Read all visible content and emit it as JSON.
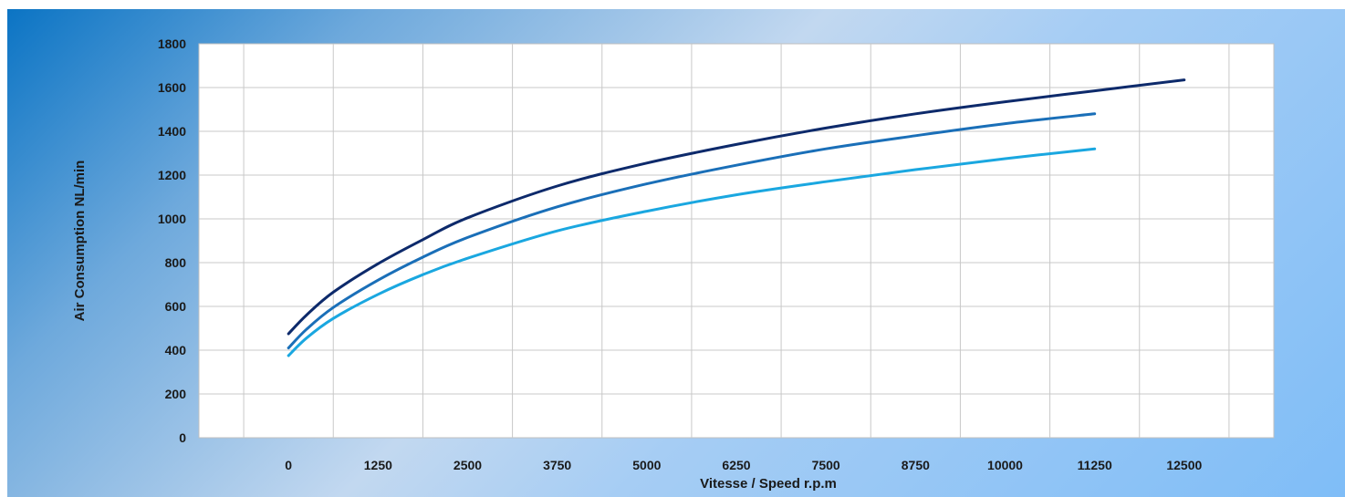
{
  "chart_data": {
    "type": "line",
    "title": "",
    "xlabel": "Vitesse / Speed r.p.m",
    "ylabel": "Air Consumption NL/min",
    "x_ticks": [
      "0",
      "1250",
      "2500",
      "3750",
      "5000",
      "6250",
      "7500",
      "8750",
      "10000",
      "11250",
      "12500"
    ],
    "y_ticks": [
      "0",
      "200",
      "400",
      "600",
      "800",
      "1000",
      "1200",
      "1400",
      "1600",
      "1800"
    ],
    "xlim": [
      -1250,
      13750
    ],
    "ylim": [
      0,
      1800
    ],
    "grid": true,
    "legend": "none",
    "series": [
      {
        "color": "#0d2a6b",
        "x": [
          0,
          250,
          625,
          1250,
          1875,
          2500,
          3750,
          5000,
          6250,
          7500,
          8750,
          10000,
          11250,
          12500
        ],
        "y": [
          475,
          560,
          665,
          795,
          905,
          1005,
          1150,
          1255,
          1340,
          1415,
          1480,
          1535,
          1585,
          1635
        ]
      },
      {
        "color": "#1a6fb8",
        "x": [
          0,
          250,
          625,
          1250,
          1875,
          2500,
          3750,
          5000,
          6250,
          7500,
          8750,
          10000,
          11250
        ],
        "y": [
          410,
          495,
          595,
          720,
          825,
          915,
          1055,
          1160,
          1245,
          1320,
          1380,
          1435,
          1480
        ]
      },
      {
        "color": "#1aa7e0",
        "x": [
          0,
          250,
          625,
          1250,
          1875,
          2500,
          3750,
          5000,
          6250,
          7500,
          8750,
          10000,
          11250
        ],
        "y": [
          375,
          455,
          545,
          655,
          745,
          820,
          945,
          1035,
          1110,
          1170,
          1225,
          1275,
          1320
        ]
      }
    ]
  }
}
